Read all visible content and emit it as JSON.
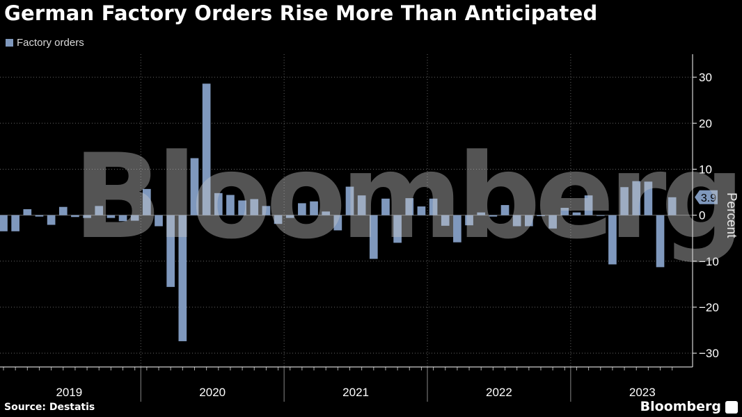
{
  "title": "German Factory Orders Rise More Than Anticipated",
  "source": "Source: Destatis",
  "brand": "Bloomberg",
  "watermark": "Bloomberg",
  "colors": {
    "bar": "#7f98bd",
    "background": "#000000",
    "grid": "#666666",
    "axis": "#ffffff"
  },
  "chart_data": {
    "type": "bar",
    "legend": {
      "entries": [
        "Factory orders"
      ],
      "position": "top-left"
    },
    "series": [
      {
        "name": "Factory orders",
        "values": [
          -3.5,
          -3.5,
          1.3,
          -0.3,
          -2.1,
          1.8,
          -0.4,
          -0.6,
          2.0,
          -0.6,
          -1.3,
          -1.2,
          5.7,
          -2.4,
          -15.6,
          -27.4,
          12.4,
          28.6,
          4.8,
          4.4,
          3.2,
          3.5,
          2.0,
          -1.9,
          -0.6,
          2.6,
          3.0,
          0.8,
          -3.3,
          6.2,
          4.3,
          -9.5,
          3.6,
          -6.0,
          3.7,
          1.9,
          3.6,
          -2.3,
          -5.9,
          -2.2,
          0.6,
          -0.3,
          2.2,
          -2.4,
          -2.4,
          -0.2,
          -2.9,
          1.6,
          0.6,
          4.3,
          -0.1,
          -10.7,
          6.1,
          7.4,
          7.3,
          -11.3,
          3.9
        ]
      }
    ],
    "x_axis": {
      "categories": [
        "2019",
        "2020",
        "2021",
        "2022",
        "2023"
      ],
      "note": "monthly, Jan 2019 - Sep 2023"
    },
    "y_axis": {
      "label": "Percent",
      "ylim": [
        -33,
        35
      ],
      "ticks": [
        30,
        20,
        10,
        0,
        -10,
        -20,
        -30
      ],
      "tick_labels": [
        "30",
        "20",
        "10",
        "0",
        "−10",
        "−20",
        "−30"
      ],
      "position": "right"
    },
    "last_value_label": "3.9",
    "grid": true
  }
}
